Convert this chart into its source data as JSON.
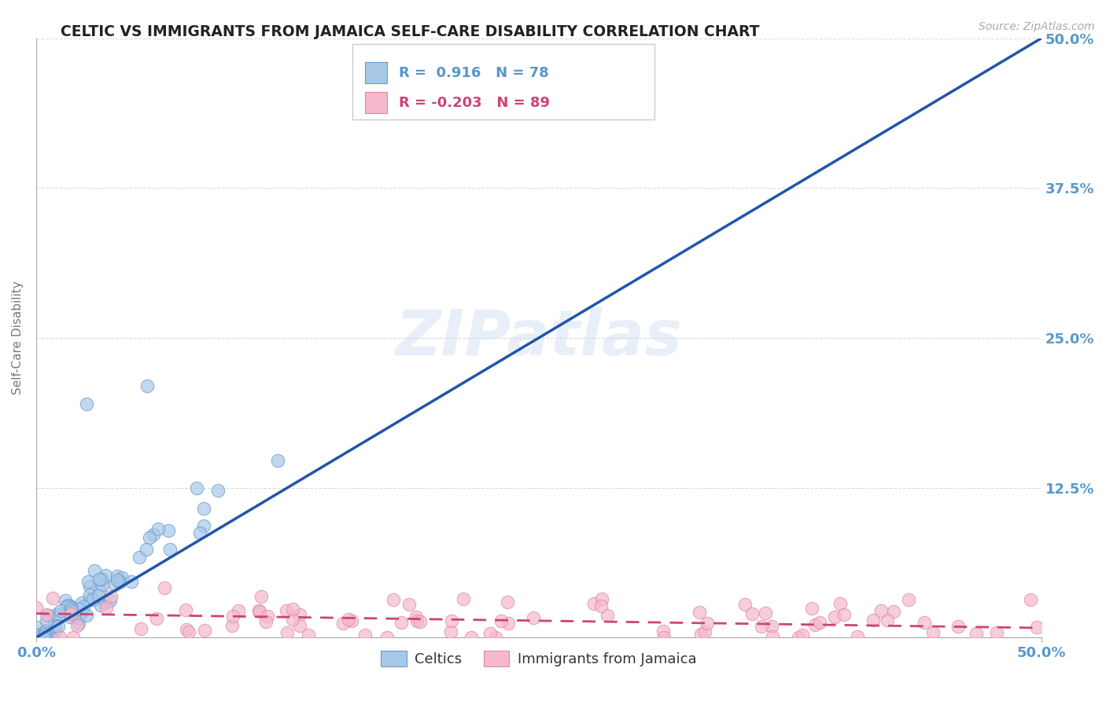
{
  "title": "CELTIC VS IMMIGRANTS FROM JAMAICA SELF-CARE DISABILITY CORRELATION CHART",
  "source": "Source: ZipAtlas.com",
  "ylabel": "Self-Care Disability",
  "xmin": 0.0,
  "xmax": 0.5,
  "ymin": 0.0,
  "ymax": 0.5,
  "grid_color": "#cccccc",
  "background_color": "#ffffff",
  "celtics_color": "#a8c8e8",
  "celtics_edge_color": "#6699cc",
  "jamaica_color": "#f5b8cc",
  "jamaica_edge_color": "#dd88aa",
  "celtics_line_color": "#2255aa",
  "jamaica_line_color": "#cc4477",
  "celtics_r": 0.916,
  "celtics_n": 78,
  "jamaica_r": -0.203,
  "jamaica_n": 89,
  "watermark": "ZIPatlas",
  "legend_label_celtics": "Celtics",
  "legend_label_jamaica": "Immigrants from Jamaica",
  "tick_color": "#5599cc"
}
